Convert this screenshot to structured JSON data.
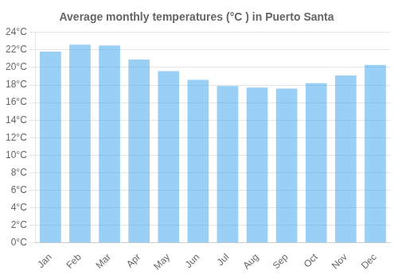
{
  "chart_data": {
    "type": "bar",
    "title": "Average monthly temperatures (°C ) in Puerto Santa",
    "categories": [
      "Jan",
      "Feb",
      "Mar",
      "Apr",
      "May",
      "Jun",
      "Jul",
      "Aug",
      "Sep",
      "Oct",
      "Nov",
      "Dec"
    ],
    "values": [
      21.8,
      22.6,
      22.5,
      20.9,
      19.6,
      18.6,
      17.9,
      17.7,
      17.6,
      18.2,
      19.1,
      20.3
    ],
    "ylim": [
      0,
      24
    ],
    "yticks": [
      {
        "value": 0,
        "label": "0°C"
      },
      {
        "value": 2,
        "label": "2°C"
      },
      {
        "value": 4,
        "label": "4°C"
      },
      {
        "value": 6,
        "label": "6°C"
      },
      {
        "value": 8,
        "label": "8°C"
      },
      {
        "value": 10,
        "label": "10°C"
      },
      {
        "value": 12,
        "label": "12°C"
      },
      {
        "value": 14,
        "label": "14°C"
      },
      {
        "value": 16,
        "label": "16°C"
      },
      {
        "value": 18,
        "label": "18°C"
      },
      {
        "value": 20,
        "label": "20°C"
      },
      {
        "value": 22,
        "label": "22°C"
      },
      {
        "value": 24,
        "label": "24°C"
      }
    ],
    "grid": true
  }
}
